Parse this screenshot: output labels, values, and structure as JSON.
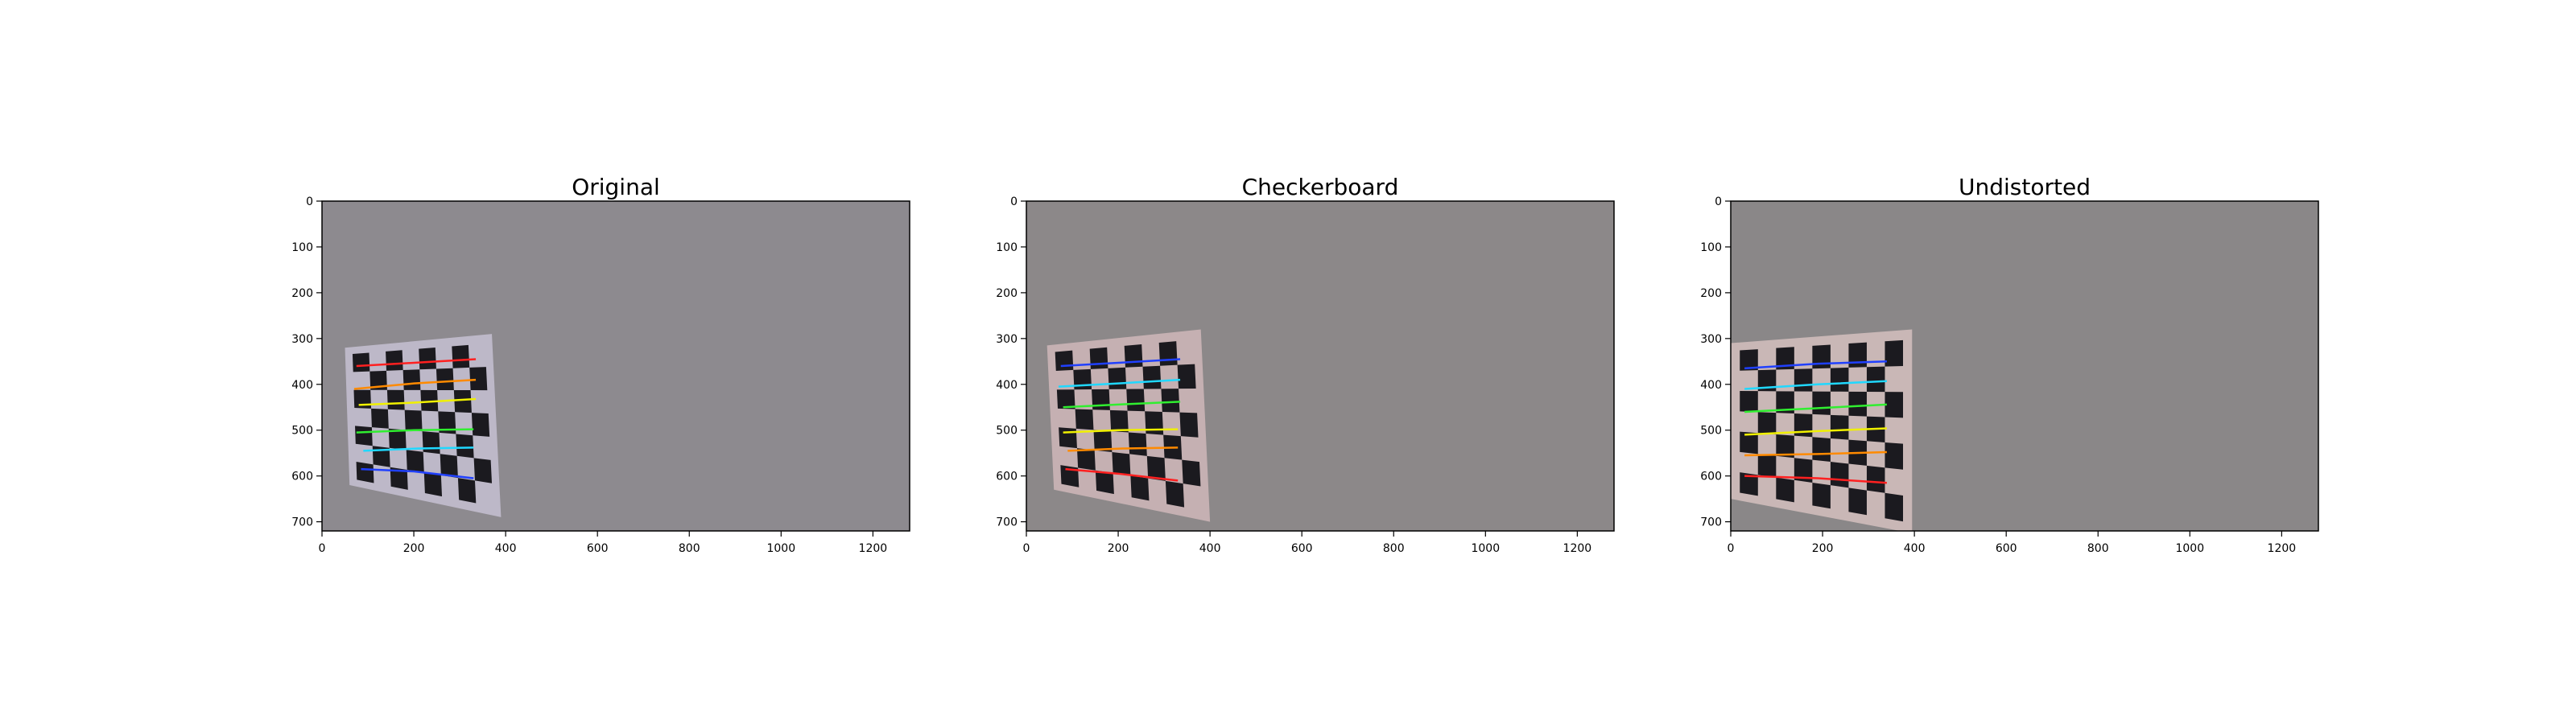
{
  "chart_data": [
    {
      "type": "image",
      "title": "Original",
      "xlim": [
        0,
        1280
      ],
      "ylim": [
        720,
        0
      ],
      "xticks": [
        0,
        200,
        400,
        600,
        800,
        1000,
        1200
      ],
      "yticks": [
        0,
        100,
        200,
        300,
        400,
        500,
        600,
        700
      ],
      "checkerboard": {
        "corners": [
          [
            50,
            320
          ],
          [
            370,
            290
          ],
          [
            390,
            690
          ],
          [
            60,
            620
          ]
        ],
        "line_rows": [
          {
            "color": "#ff2020",
            "points": [
              [
                75,
                360
              ],
              [
                200,
                353
              ],
              [
                335,
                345
              ]
            ]
          },
          {
            "color": "#ff8a00",
            "points": [
              [
                70,
                410
              ],
              [
                200,
                398
              ],
              [
                335,
                390
              ]
            ]
          },
          {
            "color": "#f0f000",
            "points": [
              [
                80,
                445
              ],
              [
                200,
                440
              ],
              [
                335,
                432
              ]
            ]
          },
          {
            "color": "#30ee30",
            "points": [
              [
                75,
                505
              ],
              [
                200,
                500
              ],
              [
                330,
                498
              ]
            ]
          },
          {
            "color": "#20d8ff",
            "points": [
              [
                90,
                545
              ],
              [
                210,
                540
              ],
              [
                330,
                538
              ]
            ]
          },
          {
            "color": "#2040ff",
            "points": [
              [
                85,
                585
              ],
              [
                200,
                590
              ],
              [
                330,
                605
              ]
            ]
          }
        ],
        "rows": 6,
        "cols": 8
      },
      "colors": {
        "background": "#8d8a8f",
        "board": "#bdb8c8"
      }
    },
    {
      "type": "image",
      "title": "Checkerboard",
      "xlim": [
        0,
        1280
      ],
      "ylim": [
        720,
        0
      ],
      "xticks": [
        0,
        200,
        400,
        600,
        800,
        1000,
        1200
      ],
      "yticks": [
        0,
        100,
        200,
        300,
        400,
        500,
        600,
        700
      ],
      "checkerboard": {
        "corners": [
          [
            45,
            315
          ],
          [
            380,
            280
          ],
          [
            400,
            700
          ],
          [
            60,
            630
          ]
        ],
        "line_rows": [
          {
            "color": "#2040ff",
            "points": [
              [
                75,
                360
              ],
              [
                200,
                353
              ],
              [
                335,
                345
              ]
            ]
          },
          {
            "color": "#20d8ff",
            "points": [
              [
                70,
                405
              ],
              [
                200,
                398
              ],
              [
                335,
                390
              ]
            ]
          },
          {
            "color": "#30ee30",
            "points": [
              [
                80,
                450
              ],
              [
                200,
                444
              ],
              [
                335,
                438
              ]
            ]
          },
          {
            "color": "#f0f000",
            "points": [
              [
                80,
                505
              ],
              [
                200,
                500
              ],
              [
                330,
                498
              ]
            ]
          },
          {
            "color": "#ff8a00",
            "points": [
              [
                90,
                545
              ],
              [
                210,
                540
              ],
              [
                330,
                538
              ]
            ]
          },
          {
            "color": "#ff2020",
            "points": [
              [
                85,
                585
              ],
              [
                200,
                595
              ],
              [
                330,
                610
              ]
            ]
          }
        ],
        "rows": 6,
        "cols": 8
      },
      "colors": {
        "background": "#8c8889",
        "board": "#c5b0b2"
      }
    },
    {
      "type": "image",
      "title": "Undistorted",
      "xlim": [
        0,
        1280
      ],
      "ylim": [
        720,
        0
      ],
      "xticks": [
        0,
        200,
        400,
        600,
        800,
        1000,
        1200
      ],
      "yticks": [
        0,
        100,
        200,
        300,
        400,
        500,
        600,
        700
      ],
      "checkerboard": {
        "corners": [
          [
            0,
            310
          ],
          [
            395,
            280
          ],
          [
            395,
            725
          ],
          [
            0,
            650
          ]
        ],
        "line_rows": [
          {
            "color": "#2040ff",
            "points": [
              [
                30,
                365
              ],
              [
                190,
                355
              ],
              [
                340,
                350
              ]
            ]
          },
          {
            "color": "#20d8ff",
            "points": [
              [
                30,
                410
              ],
              [
                190,
                400
              ],
              [
                340,
                393
              ]
            ]
          },
          {
            "color": "#30ee30",
            "points": [
              [
                30,
                460
              ],
              [
                190,
                452
              ],
              [
                340,
                444
              ]
            ]
          },
          {
            "color": "#f0f000",
            "points": [
              [
                30,
                510
              ],
              [
                190,
                502
              ],
              [
                340,
                496
              ]
            ]
          },
          {
            "color": "#ff8a00",
            "points": [
              [
                30,
                555
              ],
              [
                190,
                552
              ],
              [
                340,
                548
              ]
            ]
          },
          {
            "color": "#ff2020",
            "points": [
              [
                30,
                600
              ],
              [
                190,
                605
              ],
              [
                340,
                615
              ]
            ]
          }
        ],
        "rows": 6,
        "cols": 9
      },
      "colors": {
        "background": "#8a8788",
        "board": "#c9b7b6"
      }
    }
  ]
}
